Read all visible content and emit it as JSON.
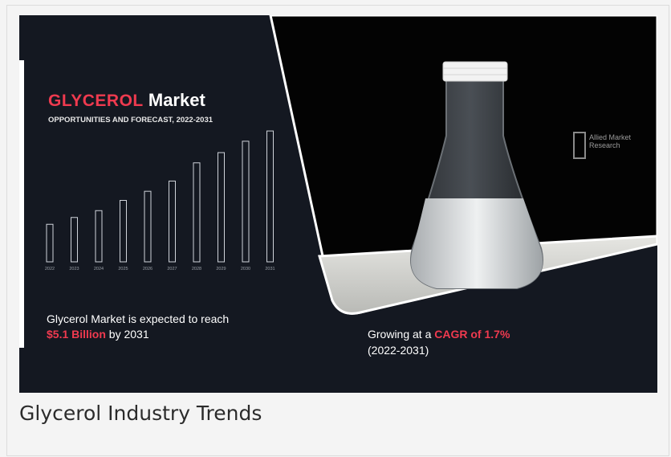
{
  "infographic": {
    "title_highlight": "GLYCEROL",
    "title_rest": " Market",
    "subtitle": "OPPORTUNITIES AND FORECAST, 2022-2031",
    "market_text_line1": "Glycerol Market is expected to reach",
    "market_value": "$5.1 Billion",
    "market_text_suffix": " by 2031",
    "cagr_prefix": "Growing at a ",
    "cagr_value": "CAGR of 1.7%",
    "cagr_period": "(2022-2031)",
    "logo_text": "Allied Market Research",
    "colors": {
      "accent": "#ef3a4f",
      "background": "#141821",
      "bars": "#cfd3da"
    }
  },
  "caption": "Glycerol Industry Trends",
  "chart_data": {
    "type": "bar",
    "categories": [
      "2022",
      "2023",
      "2024",
      "2025",
      "2026",
      "2027",
      "2028",
      "2029",
      "2030",
      "2031"
    ],
    "values": [
      3.3,
      3.9,
      4.5,
      5.4,
      6.2,
      7.1,
      8.7,
      9.6,
      10.6,
      11.5
    ],
    "title": "",
    "xlabel": "",
    "ylabel": "",
    "ylim": [
      0,
      12
    ],
    "grid": false,
    "style": "outlined bars",
    "unit_note": "illustrative growth bars, no y-axis scale shown"
  }
}
